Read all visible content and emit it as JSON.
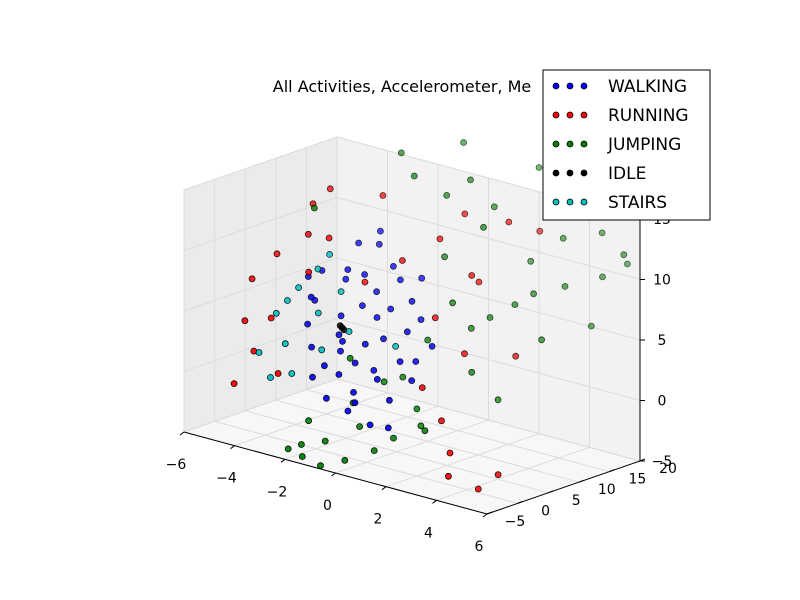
{
  "chart_data": {
    "type": "scatter3d",
    "title": "All Activities, Accelerometer, Me",
    "xlim": [
      -6,
      6
    ],
    "ylim": [
      -5,
      20
    ],
    "zlim": [
      -5,
      15
    ],
    "x_ticks": [
      "−6",
      "−4",
      "−2",
      "0",
      "2",
      "4",
      "6"
    ],
    "y_ticks": [
      "−5",
      "0",
      "5",
      "10",
      "15",
      "20"
    ],
    "z_ticks": [
      "−5",
      "0",
      "5",
      "10",
      "15"
    ],
    "grid": true,
    "legend_position": "top-right",
    "series": [
      {
        "name": "WALKING",
        "color": "#0000ff",
        "points": [
          [
            -2.0,
            -0.5,
            1.0
          ],
          [
            -1.2,
            0.5,
            1.5
          ],
          [
            -0.8,
            1.5,
            2.5
          ],
          [
            -1.5,
            2.0,
            3.0
          ],
          [
            -0.5,
            0.0,
            0.5
          ],
          [
            0.2,
            1.0,
            1.8
          ],
          [
            -1.8,
            3.0,
            4.0
          ],
          [
            -1.0,
            4.0,
            3.5
          ],
          [
            -0.3,
            2.5,
            2.0
          ],
          [
            -2.2,
            5.0,
            5.0
          ],
          [
            -1.6,
            6.0,
            6.0
          ],
          [
            -0.9,
            5.5,
            5.5
          ],
          [
            -0.4,
            4.5,
            4.2
          ],
          [
            0.5,
            3.5,
            3.0
          ],
          [
            1.0,
            4.0,
            3.2
          ],
          [
            -2.5,
            7.0,
            7.5
          ],
          [
            -2.0,
            8.0,
            8.0
          ],
          [
            -1.4,
            7.5,
            7.0
          ],
          [
            -0.6,
            6.5,
            6.2
          ],
          [
            0.3,
            5.5,
            5.0
          ],
          [
            -2.8,
            2.0,
            4.5
          ],
          [
            -3.0,
            4.0,
            6.0
          ],
          [
            -2.4,
            1.0,
            3.0
          ],
          [
            -1.7,
            0.2,
            2.0
          ],
          [
            -0.2,
            -1.0,
            0.0
          ],
          [
            0.8,
            0.5,
            0.5
          ],
          [
            1.2,
            2.5,
            2.0
          ],
          [
            -1.1,
            9.0,
            9.0
          ],
          [
            -0.7,
            8.5,
            8.2
          ],
          [
            0.0,
            7.5,
            7.0
          ],
          [
            -2.6,
            9.5,
            10.0
          ],
          [
            -1.9,
            10.0,
            10.2
          ],
          [
            -3.2,
            6.0,
            8.0
          ],
          [
            -2.9,
            3.0,
            6.5
          ],
          [
            -1.3,
            1.5,
            4.0
          ],
          [
            0.6,
            6.5,
            6.0
          ],
          [
            1.4,
            5.0,
            4.5
          ],
          [
            -0.1,
            9.5,
            8.5
          ],
          [
            -2.1,
            11.0,
            11.0
          ],
          [
            -1.5,
            -0.3,
            -0.5
          ],
          [
            -0.6,
            -0.5,
            -1.0
          ],
          [
            0.4,
            -1.0,
            -1.5
          ],
          [
            1.0,
            -0.5,
            -1.5
          ],
          [
            -3.5,
            5.0,
            7.5
          ],
          [
            -2.3,
            6.5,
            8.5
          ]
        ]
      },
      {
        "name": "RUNNING",
        "color": "#ff0000",
        "points": [
          [
            -5.0,
            2.0,
            7.0
          ],
          [
            -4.5,
            4.0,
            9.0
          ],
          [
            -4.8,
            0.0,
            4.0
          ],
          [
            -4.0,
            1.0,
            4.5
          ],
          [
            -4.2,
            -1.0,
            2.0
          ],
          [
            -3.5,
            5.0,
            11.0
          ],
          [
            -3.8,
            7.0,
            13.0
          ],
          [
            -3.6,
            9.0,
            14.0
          ],
          [
            -3.0,
            3.0,
            8.5
          ],
          [
            -2.8,
            5.5,
            11.0
          ],
          [
            -1.5,
            6.0,
            8.0
          ],
          [
            -0.5,
            8.0,
            10.0
          ],
          [
            0.5,
            10.0,
            12.0
          ],
          [
            1.0,
            12.0,
            14.0
          ],
          [
            2.0,
            9.0,
            10.0
          ],
          [
            2.5,
            13.0,
            14.0
          ],
          [
            3.0,
            16.0,
            13.0
          ],
          [
            1.5,
            3.0,
            1.5
          ],
          [
            2.5,
            2.0,
            -0.5
          ],
          [
            3.5,
            -1.0,
            -4.0
          ],
          [
            3.2,
            0.5,
            -2.5
          ],
          [
            4.5,
            3.0,
            -4.0
          ],
          [
            4.2,
            1.0,
            -5.0
          ],
          [
            -3.0,
            -2.0,
            1.0
          ],
          [
            -4.5,
            -3.0,
            -0.5
          ],
          [
            0.8,
            8.0,
            6.0
          ],
          [
            1.8,
            11.0,
            9.0
          ],
          [
            -2.0,
            11.0,
            14.0
          ],
          [
            2.2,
            7.0,
            4.0
          ],
          [
            3.5,
            10.0,
            4.0
          ]
        ]
      },
      {
        "name": "JUMPING",
        "color": "#007f00",
        "points": [
          [
            -1.0,
            12.0,
            16.0
          ],
          [
            0.5,
            15.0,
            16.0
          ],
          [
            -0.2,
            14.0,
            14.5
          ],
          [
            1.5,
            13.0,
            13.0
          ],
          [
            -0.5,
            18.0,
            18.0
          ],
          [
            2.0,
            20.0,
            17.0
          ],
          [
            3.5,
            20.0,
            15.0
          ],
          [
            4.5,
            20.0,
            13.0
          ],
          [
            5.5,
            20.0,
            11.0
          ],
          [
            5.0,
            18.0,
            10.0
          ],
          [
            4.0,
            16.0,
            9.0
          ],
          [
            3.0,
            15.0,
            8.0
          ],
          [
            2.5,
            14.0,
            7.0
          ],
          [
            2.0,
            12.0,
            6.0
          ],
          [
            3.8,
            13.0,
            5.0
          ],
          [
            4.8,
            17.0,
            6.0
          ],
          [
            1.0,
            10.0,
            7.0
          ],
          [
            1.5,
            11.0,
            5.0
          ],
          [
            0.5,
            8.0,
            4.0
          ],
          [
            2.0,
            9.0,
            2.0
          ],
          [
            2.8,
            10.0,
            0.0
          ],
          [
            0.0,
            6.0,
            1.0
          ],
          [
            -0.5,
            5.0,
            0.5
          ],
          [
            0.8,
            5.0,
            -1.0
          ],
          [
            1.2,
            4.0,
            -2.0
          ],
          [
            -1.0,
            2.0,
            -1.0
          ],
          [
            -0.5,
            1.0,
            -2.5
          ],
          [
            0.2,
            0.5,
            -4.0
          ],
          [
            -1.5,
            -0.5,
            -4.0
          ],
          [
            -2.2,
            -1.5,
            -4.5
          ],
          [
            -2.6,
            -2.0,
            -5.0
          ],
          [
            -1.8,
            -3.0,
            -5.0
          ],
          [
            -1.2,
            -2.5,
            -5.5
          ],
          [
            -0.6,
            -1.0,
            -5.0
          ],
          [
            0.6,
            2.0,
            -3.0
          ],
          [
            1.6,
            3.0,
            -2.0
          ],
          [
            -3.5,
            6.0,
            13.0
          ],
          [
            -2.0,
            14.0,
            17.0
          ],
          [
            1.2,
            16.0,
            14.0
          ],
          [
            3.2,
            19.0,
            12.0
          ],
          [
            2.4,
            17.0,
            10.0
          ],
          [
            5.6,
            19.0,
            12.0
          ],
          [
            0.2,
            12.0,
            10.0
          ],
          [
            -1.6,
            4.0,
            2.0
          ],
          [
            -2.4,
            0.5,
            -3.0
          ]
        ]
      },
      {
        "name": "IDLE",
        "color": "#000000",
        "points": [
          [
            -1.8,
            3.5,
            4.5
          ],
          [
            -1.9,
            3.6,
            4.6
          ],
          [
            -1.7,
            3.4,
            4.4
          ]
        ]
      },
      {
        "name": "STAIRS",
        "color": "#00bfbf",
        "points": [
          [
            -3.8,
            1.0,
            5.0
          ],
          [
            -3.4,
            3.0,
            7.0
          ],
          [
            -4.0,
            -1.0,
            2.0
          ],
          [
            -3.0,
            4.5,
            8.5
          ],
          [
            -2.5,
            2.5,
            5.5
          ],
          [
            -3.2,
            0.0,
            3.0
          ],
          [
            -2.7,
            -1.0,
            1.0
          ],
          [
            -2.0,
            1.0,
            3.0
          ],
          [
            -2.9,
            6.0,
            9.5
          ],
          [
            -3.6,
            2.0,
            6.0
          ],
          [
            -1.4,
            3.0,
            4.5
          ],
          [
            0.2,
            4.0,
            4.0
          ],
          [
            -2.2,
            5.0,
            7.0
          ],
          [
            -3.3,
            -2.0,
            0.5
          ]
        ]
      }
    ]
  }
}
